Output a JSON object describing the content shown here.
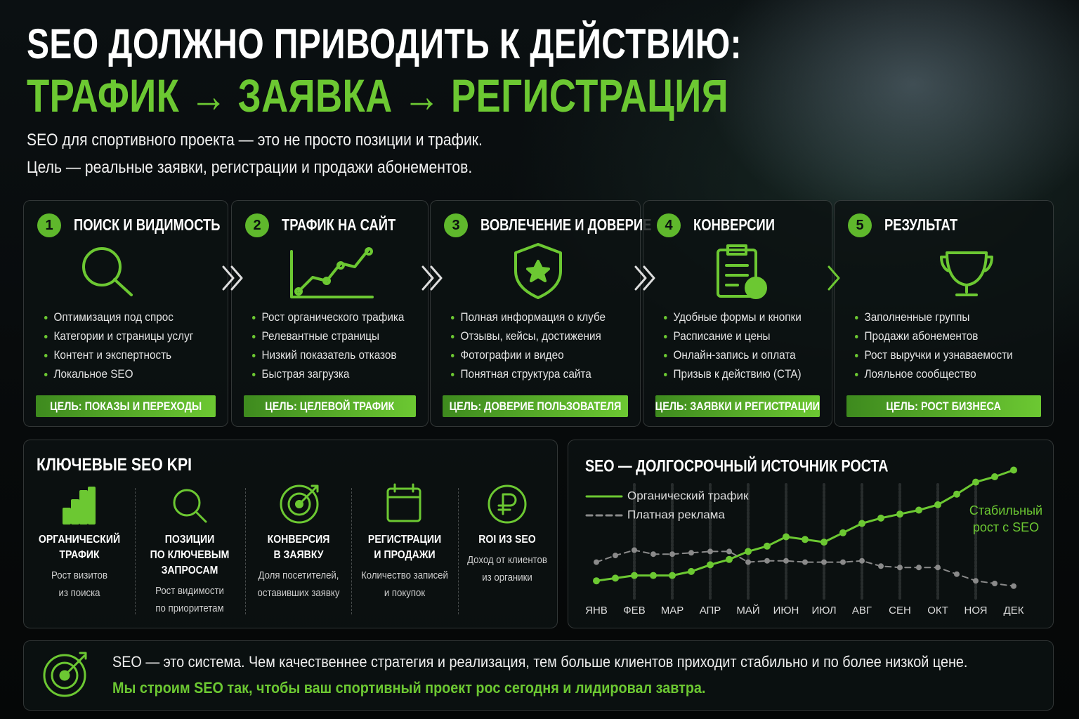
{
  "header": {
    "title": "SEO ДОЛЖНО ПРИВОДИТЬ К ДЕЙСТВИЮ:",
    "title_accent": "ТРАФИК → ЗАЯВКА → РЕГИСТРАЦИЯ",
    "subtitle": [
      "SEO для спортивного проекта — это не просто позиции и трафик.",
      "Цель — реальные заявки, регистрации и продажи абонементов."
    ]
  },
  "steps": [
    {
      "number": 1,
      "title": "ПОИСК И ВИДИМОСТЬ",
      "items": [
        "Оптимизация под спрос",
        "Категории и страницы услуг",
        "Контент и экспертность",
        "Локальное SEO"
      ],
      "goal": "ЦЕЛЬ: ПОКАЗЫ И ПЕРЕХОДЫ"
    },
    {
      "number": 2,
      "title": "ТРАФИК НА САЙТ",
      "items": [
        "Рост органического трафика",
        "Релевантные страницы",
        "Низкий показатель отказов",
        "Быстрая загрузка"
      ],
      "goal": "ЦЕЛЬ: ЦЕЛЕВОЙ ТРАФИК"
    },
    {
      "number": 3,
      "title": "ВОВЛЕЧЕНИЕ И ДОВЕРИЕ",
      "items": [
        "Полная информация о клубе",
        "Отзывы, кейсы, достижения",
        "Фотографии и видео",
        "Понятная структура сайта"
      ],
      "goal": "ЦЕЛЬ: ДОВЕРИЕ ПОЛЬЗОВАТЕЛЯ"
    },
    {
      "number": 4,
      "title": "КОНВЕРСИИ",
      "items": [
        "Удобные формы и кнопки",
        "Расписание и цены",
        "Онлайн-запись и оплата",
        "Призыв к действию (CTA)"
      ],
      "goal": "ЦЕЛЬ: ЗАЯВКИ И РЕГИСТРАЦИИ"
    },
    {
      "number": 5,
      "title": "РЕЗУЛЬТАТ",
      "items": [
        "Заполненные группы",
        "Продажи абонементов",
        "Рост выручки и узнаваемости",
        "Лояльное сообщество"
      ],
      "goal": "ЦЕЛЬ: РОСТ БИЗНЕСА"
    }
  ],
  "kpi": {
    "title": "КЛЮЧЕВЫЕ SEO KPI",
    "items": [
      {
        "title": [
          "ОРГАНИЧЕСКИЙ",
          "ТРАФИК"
        ],
        "desc": [
          "Рост визитов",
          "из поиска"
        ]
      },
      {
        "title": [
          "ПОЗИЦИИ",
          "ПО КЛЮЧЕВЫМ",
          "ЗАПРОСАМ"
        ],
        "desc": [
          "Рост видимости",
          "по приоритетам"
        ]
      },
      {
        "title": [
          "КОНВЕРСИЯ",
          "В ЗАЯВКУ"
        ],
        "desc": [
          "Доля посетителей,",
          "оставивших заявку"
        ]
      },
      {
        "title": [
          "РЕГИСТРАЦИИ",
          "И ПРОДАЖИ"
        ],
        "desc": [
          "Количество записей",
          "и покупок"
        ]
      },
      {
        "title": [
          "ROI ИЗ SEO"
        ],
        "desc": [
          "Доход от клиентов",
          "из органики"
        ]
      }
    ]
  },
  "chart_data": {
    "type": "line",
    "title": "SEO — ДОЛГОСРОЧНЫЙ ИСТОЧНИК РОСТА",
    "categories": [
      "ЯНВ",
      null,
      "ФЕВ",
      null,
      "МАР",
      null,
      "АПР",
      null,
      "МАЙ",
      null,
      "ИЮН",
      null,
      "ИЮЛ",
      null,
      "АВГ",
      null,
      "СЕН",
      null,
      "ОКТ",
      null,
      "НОЯ",
      null,
      "ДЕК"
    ],
    "series": [
      {
        "name": "Органический трафик",
        "color": "#6cc832",
        "line_style": "solid",
        "values": [
          12,
          14,
          16,
          16,
          16,
          19,
          24,
          28,
          34,
          38,
          45,
          43,
          41,
          48,
          55,
          59,
          62,
          65,
          69,
          77,
          86,
          90,
          95
        ]
      },
      {
        "name": "Платная реклама",
        "color": "#8a8a8a",
        "line_style": "dashed",
        "values": [
          26,
          31,
          35,
          32,
          32,
          33,
          34,
          34,
          26,
          27,
          27,
          26,
          26,
          26,
          27,
          23,
          22,
          22,
          22,
          17,
          12,
          10,
          8
        ]
      }
    ],
    "ylim": [
      0,
      100
    ],
    "annotation": [
      "Стабильный",
      "рост с SEO"
    ]
  },
  "footer": {
    "text": "SEO — это система. Чем качественнее стратегия и реализация, тем больше клиентов приходит стабильно и по более низкой цене.",
    "accent": "Мы строим SEO так, чтобы ваш спортивный проект рос сегодня и лидировал завтра."
  }
}
